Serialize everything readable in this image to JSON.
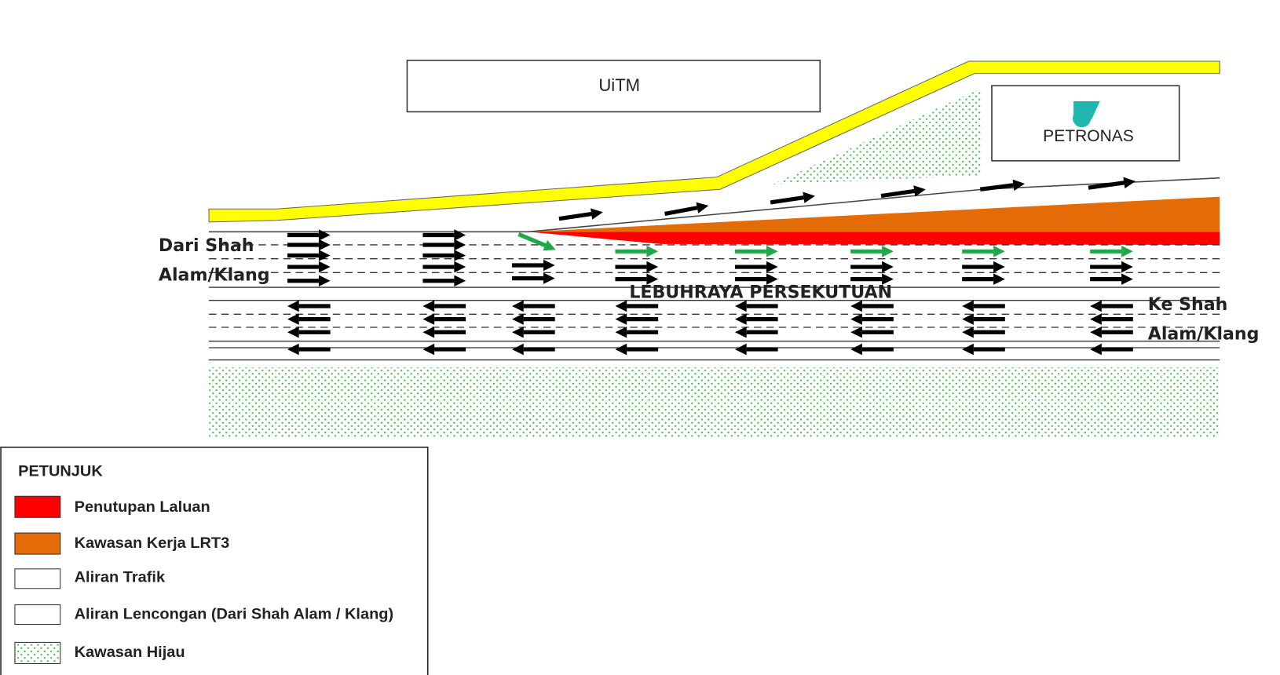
{
  "labels": {
    "uitm": "UiTM",
    "petronas": "PETRONAS",
    "from": [
      "Dari Shah",
      "Alam/Klang"
    ],
    "highway": "LEBUHRAYA PERSEKUTUAN",
    "to": [
      "Ke Shah",
      "Alam/Klang"
    ]
  },
  "legend": {
    "title": "PETUNJUK",
    "items": [
      "Penutupan Laluan",
      "Kawasan Kerja LRT3",
      "Aliran Trafik",
      "Aliran Lencongan (Dari Shah Alam / Klang)",
      "Kawasan Hijau"
    ]
  }
}
